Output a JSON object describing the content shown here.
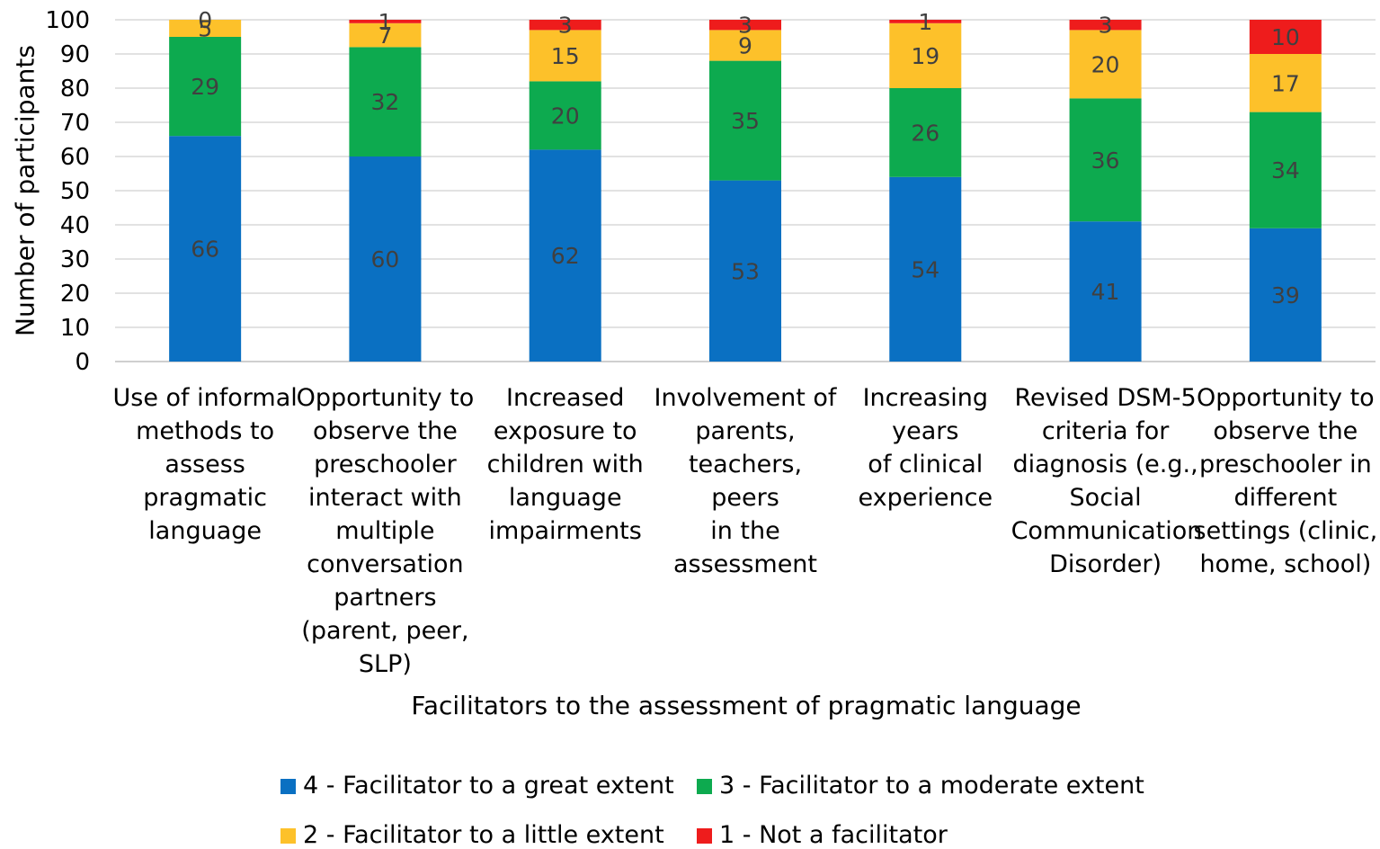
{
  "chart_data": {
    "type": "bar",
    "stacked": true,
    "categories": [
      "Use of informal methods to assess pragmatic language",
      "Opportunity to observe the preschooler interact with multiple conversation partners (parent, peer, SLP)",
      "Increased exposure to children with language impairments",
      "Involvement of parents, teachers, peers in the assessment",
      "Increasing years of clinical experience",
      "Revised DSM-5 criteria for diagnosis (e.g., Social Communication Disorder)",
      "Opportunity to observe the preschooler in different settings (clinic, home, school)"
    ],
    "category_lines": [
      [
        "Use of informal",
        "methods to",
        "assess",
        "pragmatic",
        "language"
      ],
      [
        "Opportunity to",
        "observe the",
        "preschooler",
        "interact with",
        "multiple",
        "conversation",
        "partners",
        "(parent, peer,",
        "SLP)"
      ],
      [
        "Increased",
        "exposure to",
        "children with",
        "language",
        "impairments"
      ],
      [
        "Involvement of",
        "parents,",
        "teachers, peers",
        "in the",
        "assessment"
      ],
      [
        "Increasing years",
        "of clinical",
        "experience"
      ],
      [
        "Revised DSM-5",
        "criteria for",
        "diagnosis (e.g.,",
        "Social",
        "Communication",
        "Disorder)"
      ],
      [
        "Opportunity to",
        "observe the",
        "preschooler in",
        "different",
        "settings (clinic,",
        "home, school)"
      ]
    ],
    "series": [
      {
        "name": "4 - Facilitator to a great extent",
        "color": "#0A70C2",
        "values": [
          66,
          60,
          62,
          53,
          54,
          41,
          39
        ]
      },
      {
        "name": "3 - Facilitator to a moderate extent",
        "color": "#0DAA4F",
        "values": [
          29,
          32,
          20,
          35,
          26,
          36,
          34
        ]
      },
      {
        "name": "2 - Facilitator to a little extent",
        "color": "#FDC12A",
        "values": [
          5,
          7,
          15,
          9,
          19,
          20,
          17
        ]
      },
      {
        "name": "1 - Not a facilitator",
        "color": "#EE1C1C",
        "values": [
          0,
          1,
          3,
          3,
          1,
          3,
          10
        ]
      }
    ],
    "title": "",
    "xlabel": "Facilitators to the assessment of pragmatic language",
    "ylabel": "Number of participants",
    "ylim": [
      0,
      100
    ],
    "yticks": [
      0,
      10,
      20,
      30,
      40,
      50,
      60,
      70,
      80,
      90,
      100
    ],
    "grid": true,
    "legend_position": "bottom"
  }
}
